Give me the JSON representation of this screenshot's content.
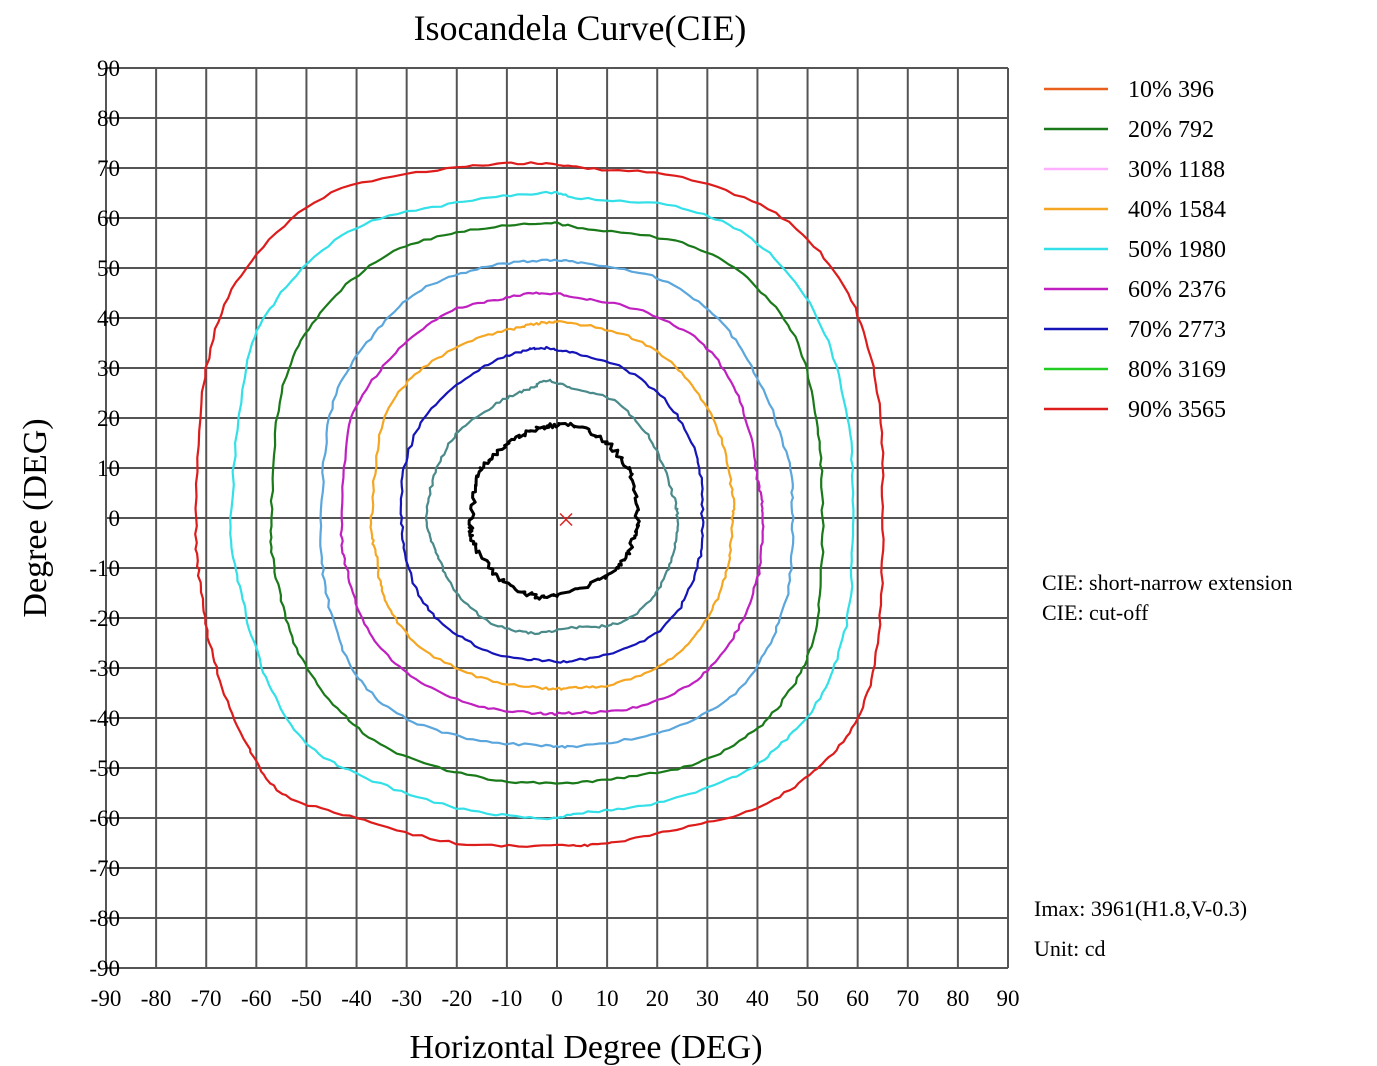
{
  "chart_data": {
    "type": "line",
    "title": "Isocandela Curve(CIE)",
    "xlabel": "Horizontal Degree (DEG)",
    "ylabel": "Degree   (DEG)",
    "xlim": [
      -90,
      90
    ],
    "ylim": [
      -90,
      90
    ],
    "x_ticks": [
      -90,
      -80,
      -70,
      -60,
      -50,
      -40,
      -30,
      -20,
      -10,
      0,
      10,
      20,
      30,
      40,
      50,
      60,
      70,
      80,
      90
    ],
    "y_ticks": [
      90,
      80,
      70,
      60,
      50,
      40,
      30,
      20,
      10,
      0,
      -10,
      -20,
      -30,
      -40,
      -50,
      -60,
      -70,
      -80,
      -90
    ],
    "x_tick_labels": [
      "-90",
      "-80",
      "-70",
      "-60",
      "-50",
      "-40",
      "-30",
      "-20",
      "-10",
      "0",
      "10",
      "20",
      "30",
      "40",
      "50",
      "60",
      "70",
      "80",
      "90"
    ],
    "y_tick_labels": [
      "90",
      "80",
      "70",
      "60",
      "50",
      "40",
      "30",
      "20",
      "10",
      "0",
      "-10",
      "-20",
      "-30",
      "-40",
      "-50",
      "-60",
      "-70",
      "-80",
      "-90"
    ],
    "grid": true,
    "legend_position": "right",
    "legend": [
      {
        "label": "10%",
        "value": "396",
        "color": "#e8601c"
      },
      {
        "label": "20%",
        "value": "792",
        "color": "#1a7a1a"
      },
      {
        "label": "30%",
        "value": "1188",
        "color": "#ffb0ff"
      },
      {
        "label": "40%",
        "value": "1584",
        "color": "#f5a623"
      },
      {
        "label": "50%",
        "value": "1980",
        "color": "#33e0e8"
      },
      {
        "label": "60%",
        "value": "2376",
        "color": "#c020c0"
      },
      {
        "label": "70%",
        "value": "2773",
        "color": "#1515b8"
      },
      {
        "label": "80%",
        "value": "3169",
        "color": "#22cc22"
      },
      {
        "label": "90%",
        "value": "3565",
        "color": "#dd1c1c"
      }
    ],
    "series": [
      {
        "color": "#dd1c1c",
        "points": [
          [
            -72,
            0
          ],
          [
            -70,
            30
          ],
          [
            -62,
            50
          ],
          [
            -45,
            65
          ],
          [
            -20,
            70
          ],
          [
            -3,
            71
          ],
          [
            5,
            70
          ],
          [
            25,
            68
          ],
          [
            45,
            60
          ],
          [
            58,
            45
          ],
          [
            64,
            25
          ],
          [
            65,
            0
          ],
          [
            64,
            -25
          ],
          [
            60,
            -40
          ],
          [
            52,
            -50
          ],
          [
            40,
            -58
          ],
          [
            25,
            -62
          ],
          [
            10,
            -65
          ],
          [
            0,
            -65.5
          ],
          [
            -20,
            -65
          ],
          [
            -40,
            -60
          ],
          [
            -55,
            -55
          ],
          [
            -62,
            -45
          ],
          [
            -68,
            -30
          ],
          [
            -71,
            -15
          ]
        ]
      },
      {
        "color": "#33e0e8",
        "points": [
          [
            -65,
            0
          ],
          [
            -62,
            30
          ],
          [
            -55,
            45
          ],
          [
            -40,
            58
          ],
          [
            -20,
            63
          ],
          [
            -3,
            65
          ],
          [
            5,
            64
          ],
          [
            25,
            62
          ],
          [
            40,
            55
          ],
          [
            52,
            40
          ],
          [
            58,
            20
          ],
          [
            59,
            0
          ],
          [
            58,
            -20
          ],
          [
            53,
            -35
          ],
          [
            45,
            -45
          ],
          [
            35,
            -52
          ],
          [
            20,
            -57
          ],
          [
            5,
            -59
          ],
          [
            -3,
            -60
          ],
          [
            -20,
            -58
          ],
          [
            -38,
            -52
          ],
          [
            -50,
            -45
          ],
          [
            -58,
            -32
          ],
          [
            -63,
            -15
          ]
        ]
      },
      {
        "color": "#1a7a1a",
        "points": [
          [
            -57,
            0
          ],
          [
            -55,
            25
          ],
          [
            -48,
            40
          ],
          [
            -35,
            52
          ],
          [
            -20,
            57
          ],
          [
            -3,
            59
          ],
          [
            5,
            58
          ],
          [
            25,
            55
          ],
          [
            38,
            48
          ],
          [
            48,
            35
          ],
          [
            52,
            18
          ],
          [
            53,
            0
          ],
          [
            52,
            -20
          ],
          [
            48,
            -32
          ],
          [
            40,
            -42
          ],
          [
            28,
            -49
          ],
          [
            12,
            -52
          ],
          [
            0,
            -53
          ],
          [
            -15,
            -52
          ],
          [
            -32,
            -47
          ],
          [
            -44,
            -38
          ],
          [
            -52,
            -26
          ],
          [
            -56,
            -12
          ]
        ]
      },
      {
        "color": "#5ba7dd",
        "points": [
          [
            -47,
            0
          ],
          [
            -45,
            22
          ],
          [
            -38,
            35
          ],
          [
            -28,
            45
          ],
          [
            -15,
            50
          ],
          [
            -3,
            51.5
          ],
          [
            5,
            51
          ],
          [
            20,
            48
          ],
          [
            32,
            40
          ],
          [
            40,
            28
          ],
          [
            46,
            12
          ],
          [
            47,
            0
          ],
          [
            46,
            -15
          ],
          [
            41,
            -28
          ],
          [
            33,
            -37
          ],
          [
            20,
            -43
          ],
          [
            5,
            -45.5
          ],
          [
            -3,
            -45.5
          ],
          [
            -18,
            -44
          ],
          [
            -32,
            -39
          ],
          [
            -41,
            -30
          ],
          [
            -46,
            -15
          ]
        ]
      },
      {
        "color": "#c020c0",
        "points": [
          [
            -43,
            0
          ],
          [
            -41,
            20
          ],
          [
            -33,
            32
          ],
          [
            -22,
            41
          ],
          [
            -10,
            44
          ],
          [
            -3,
            45
          ],
          [
            5,
            44
          ],
          [
            18,
            41
          ],
          [
            30,
            34
          ],
          [
            37,
            22
          ],
          [
            40,
            8
          ],
          [
            41,
            0
          ],
          [
            40,
            -12
          ],
          [
            35,
            -24
          ],
          [
            27,
            -33
          ],
          [
            15,
            -38
          ],
          [
            3,
            -39
          ],
          [
            -5,
            -39
          ],
          [
            -18,
            -37
          ],
          [
            -30,
            -31
          ],
          [
            -38,
            -22
          ],
          [
            -42,
            -10
          ]
        ]
      },
      {
        "color": "#f5a623",
        "points": [
          [
            -37,
            0
          ],
          [
            -35,
            18
          ],
          [
            -29,
            28
          ],
          [
            -18,
            35
          ],
          [
            -8,
            38
          ],
          [
            -3,
            39
          ],
          [
            3,
            39
          ],
          [
            15,
            36
          ],
          [
            25,
            29
          ],
          [
            32,
            18
          ],
          [
            35,
            5
          ],
          [
            35,
            0
          ],
          [
            34,
            -10
          ],
          [
            30,
            -20
          ],
          [
            23,
            -28
          ],
          [
            12,
            -33
          ],
          [
            3,
            -34
          ],
          [
            -3,
            -34
          ],
          [
            -15,
            -32
          ],
          [
            -27,
            -26
          ],
          [
            -34,
            -17
          ],
          [
            -36,
            -8
          ]
        ]
      },
      {
        "color": "#1515b8",
        "points": [
          [
            -31,
            0
          ],
          [
            -30,
            12
          ],
          [
            -25,
            22
          ],
          [
            -15,
            30
          ],
          [
            -8,
            33
          ],
          [
            -3,
            34
          ],
          [
            3,
            33
          ],
          [
            13,
            30
          ],
          [
            22,
            23
          ],
          [
            28,
            12
          ],
          [
            29,
            0
          ],
          [
            28,
            -10
          ],
          [
            23,
            -20
          ],
          [
            14,
            -26
          ],
          [
            3,
            -28.5
          ],
          [
            -3,
            -28.5
          ],
          [
            -13,
            -27
          ],
          [
            -23,
            -21
          ],
          [
            -29,
            -12
          ]
        ]
      },
      {
        "color": "#4a8a8a",
        "points": [
          [
            -26,
            0
          ],
          [
            -24,
            10
          ],
          [
            -19,
            18
          ],
          [
            -10,
            24
          ],
          [
            -5,
            26
          ],
          [
            -2,
            27.5
          ],
          [
            3,
            26
          ],
          [
            12,
            23
          ],
          [
            19,
            15
          ],
          [
            23,
            5
          ],
          [
            24,
            0
          ],
          [
            23,
            -8
          ],
          [
            19,
            -16
          ],
          [
            12,
            -21
          ],
          [
            3,
            -22
          ],
          [
            -5,
            -23
          ],
          [
            -13,
            -21
          ],
          [
            -20,
            -15
          ],
          [
            -24,
            -7
          ]
        ]
      },
      {
        "color": "#000000",
        "points": [
          [
            -17,
            0
          ],
          [
            -16,
            8
          ],
          [
            -13,
            12
          ],
          [
            -8,
            16
          ],
          [
            -3,
            18
          ],
          [
            0,
            18.5
          ],
          [
            5,
            18
          ],
          [
            11,
            14
          ],
          [
            15,
            8
          ],
          [
            16,
            0
          ],
          [
            15,
            -5
          ],
          [
            12,
            -10
          ],
          [
            7,
            -13
          ],
          [
            0,
            -15.5
          ],
          [
            -5,
            -15.5
          ],
          [
            -10,
            -13
          ],
          [
            -14,
            -9
          ],
          [
            -17,
            -4
          ]
        ]
      }
    ],
    "annotations": [
      "CIE: short-narrow extension",
      "CIE: cut-off",
      "Imax: 3961(H1.8,V-0.3)",
      "Unit: cd"
    ],
    "max_point": {
      "x": 1.8,
      "y": -0.3
    }
  }
}
